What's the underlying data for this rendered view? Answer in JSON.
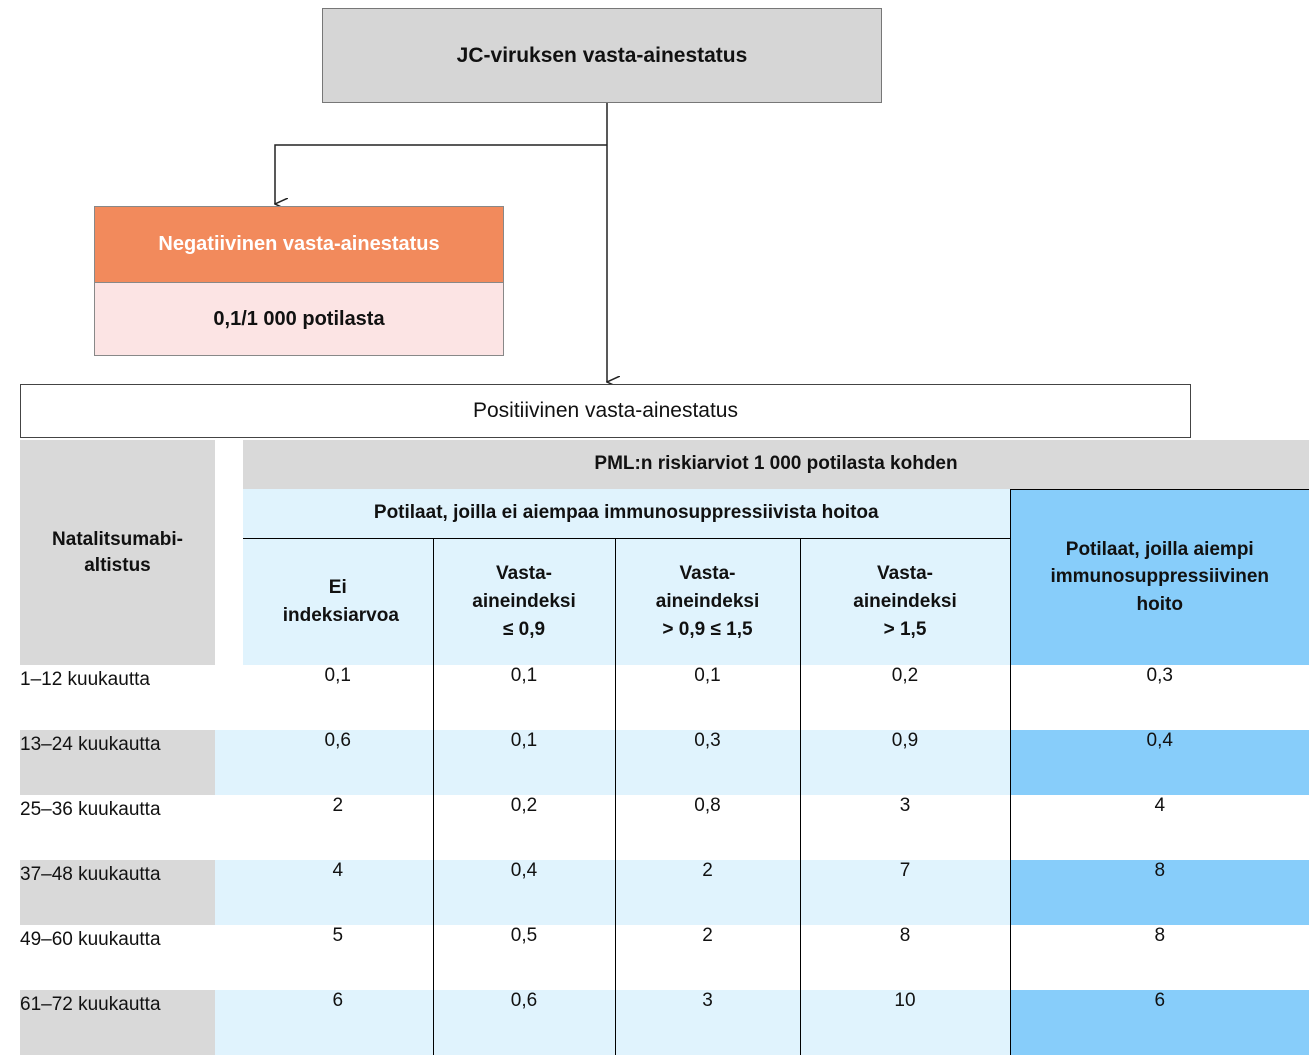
{
  "flow": {
    "top_box": "JC-viruksen vasta-ainestatus",
    "negative_header": "Negatiivinen vasta-ainestatus",
    "negative_value": "0,1/1 000 potilasta",
    "positive_box": "Positiivinen vasta-ainestatus"
  },
  "table": {
    "exposure_header": "Natalitsumabi-altistus",
    "main_header": "PML:n riskiarviot 1 000 potilasta kohden",
    "no_prior_header": "Potilaat, joilla ei aiempaa immunosuppressiivista hoitoa",
    "prior_header": "Potilaat, joilla aiempi immunosuppressiivinen hoito",
    "subheaders": [
      "Ei indeksiarvoa",
      "Vasta-aineindeksi ≤ 0,9",
      "Vasta-aineindeksi > 0,9 ≤ 1,5",
      "Vasta-aineindeksi > 1,5"
    ],
    "rows": [
      {
        "label": "1–12 kuukautta",
        "values": [
          "0,1",
          "0,1",
          "0,1",
          "0,2",
          "0,3"
        ]
      },
      {
        "label": "13–24 kuukautta",
        "values": [
          "0,6",
          "0,1",
          "0,3",
          "0,9",
          "0,4"
        ]
      },
      {
        "label": "25–36 kuukautta",
        "values": [
          "2",
          "0,2",
          "0,8",
          "3",
          "4"
        ]
      },
      {
        "label": "37–48 kuukautta",
        "values": [
          "4",
          "0,4",
          "2",
          "7",
          "8"
        ]
      },
      {
        "label": "49–60 kuukautta",
        "values": [
          "5",
          "0,5",
          "2",
          "8",
          "8"
        ]
      },
      {
        "label": "61–72 kuukautta",
        "values": [
          "6",
          "0,6",
          "3",
          "10",
          "6"
        ]
      }
    ]
  },
  "colors": {
    "grey": "#d9d9d9",
    "orange": "#f28a5c",
    "pink": "#fce4e4",
    "light_blue": "#e0f3fd",
    "blue": "#87cdfa"
  }
}
